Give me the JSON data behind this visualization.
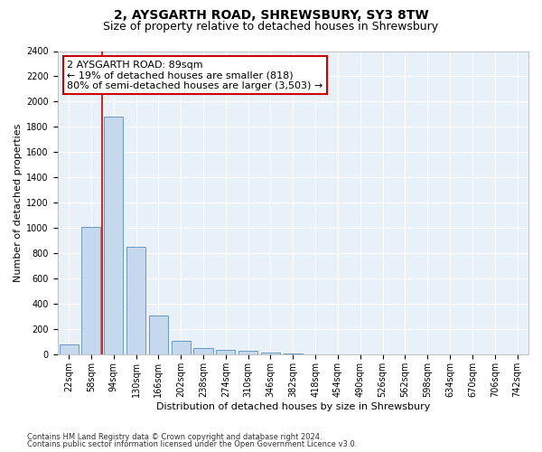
{
  "title": "2, AYSGARTH ROAD, SHREWSBURY, SY3 8TW",
  "subtitle": "Size of property relative to detached houses in Shrewsbury",
  "xlabel": "Distribution of detached houses by size in Shrewsbury",
  "ylabel": "Number of detached properties",
  "bar_labels": [
    "22sqm",
    "58sqm",
    "94sqm",
    "130sqm",
    "166sqm",
    "202sqm",
    "238sqm",
    "274sqm",
    "310sqm",
    "346sqm",
    "382sqm",
    "418sqm",
    "454sqm",
    "490sqm",
    "526sqm",
    "562sqm",
    "598sqm",
    "634sqm",
    "670sqm",
    "706sqm",
    "742sqm"
  ],
  "bar_values": [
    80,
    1010,
    1880,
    855,
    310,
    110,
    50,
    40,
    30,
    15,
    10,
    0,
    0,
    0,
    0,
    0,
    0,
    0,
    0,
    0,
    0
  ],
  "bar_color": "#c5d8ed",
  "bar_edge_color": "#5b8db8",
  "highlight_line_color": "#cc0000",
  "annotation_text": "2 AYSGARTH ROAD: 89sqm\n← 19% of detached houses are smaller (818)\n80% of semi-detached houses are larger (3,503) →",
  "annotation_box_color": "#ffffff",
  "annotation_box_edge_color": "#cc0000",
  "ylim": [
    0,
    2400
  ],
  "yticks": [
    0,
    200,
    400,
    600,
    800,
    1000,
    1200,
    1400,
    1600,
    1800,
    2000,
    2200,
    2400
  ],
  "footnote1": "Contains HM Land Registry data © Crown copyright and database right 2024.",
  "footnote2": "Contains public sector information licensed under the Open Government Licence v3.0.",
  "bg_color": "#ffffff",
  "plot_bg_color": "#e8f0f8",
  "grid_color": "#ffffff",
  "title_fontsize": 10,
  "subtitle_fontsize": 9,
  "axis_label_fontsize": 8,
  "tick_fontsize": 7,
  "annotation_fontsize": 8
}
